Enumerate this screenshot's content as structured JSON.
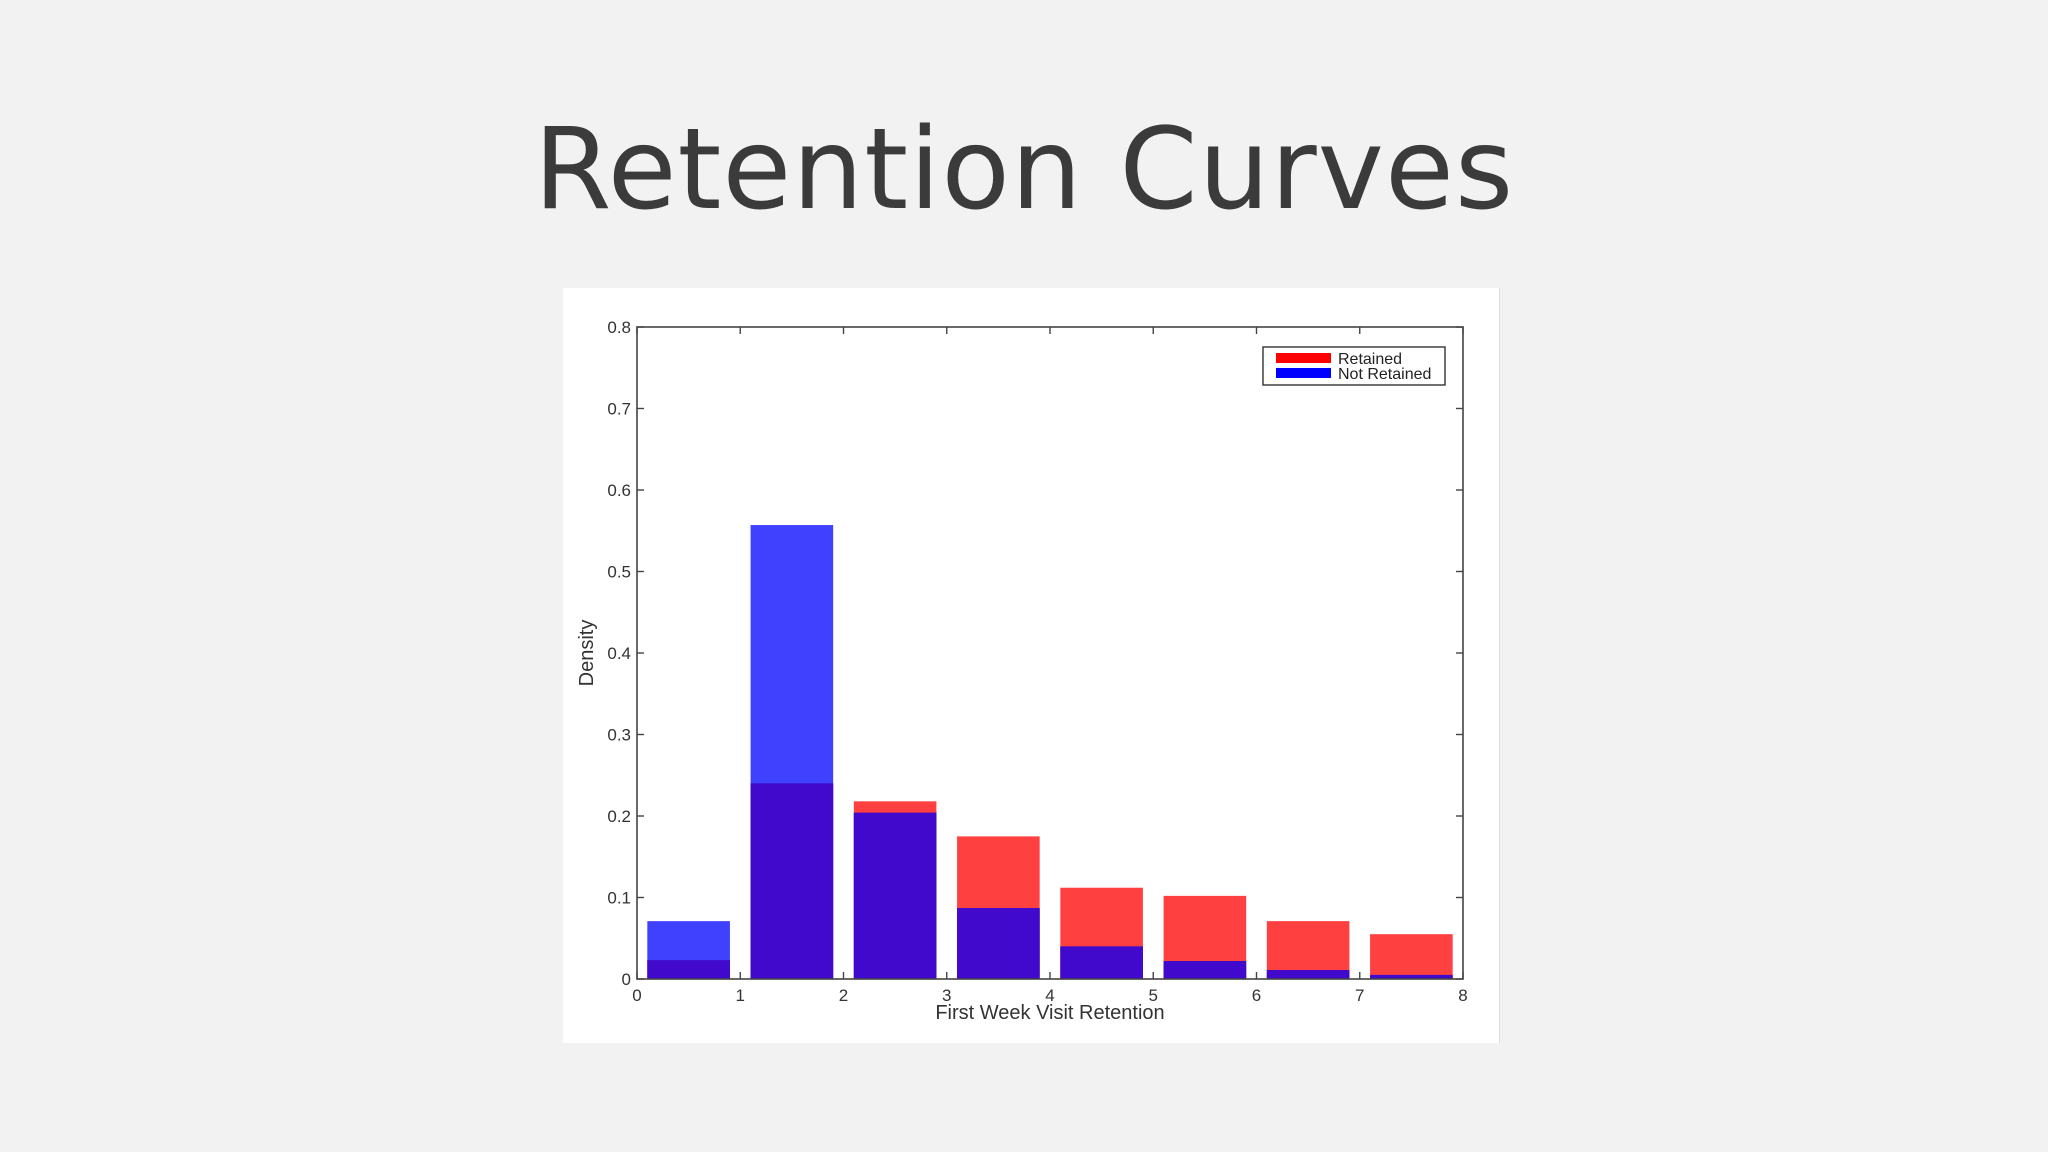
{
  "slide": {
    "title": "Retention Curves"
  },
  "chart_data": {
    "type": "bar",
    "xlabel": "First Week Visit Retention",
    "ylabel": "Density",
    "xlim": [
      0,
      8
    ],
    "ylim": [
      0,
      0.8
    ],
    "x_ticks": [
      "0",
      "1",
      "2",
      "3",
      "4",
      "5",
      "6",
      "7",
      "8"
    ],
    "y_ticks": [
      "0",
      "0.1",
      "0.2",
      "0.3",
      "0.4",
      "0.5",
      "0.6",
      "0.7",
      "0.8"
    ],
    "bin_starts": [
      0,
      1,
      2,
      3,
      4,
      5,
      6,
      7
    ],
    "bar_width": 0.8,
    "series": [
      {
        "name": "Retained",
        "color": "#ff0000",
        "values": [
          0.023,
          0.24,
          0.218,
          0.175,
          0.112,
          0.102,
          0.071,
          0.055
        ]
      },
      {
        "name": "Not Retained",
        "color": "#0000ff",
        "values": [
          0.071,
          0.557,
          0.204,
          0.087,
          0.04,
          0.022,
          0.011,
          0.005
        ]
      }
    ],
    "overlap_color": "#4009cc",
    "legend_position": "top-right",
    "grid": false
  }
}
